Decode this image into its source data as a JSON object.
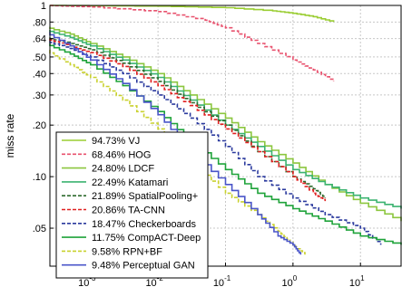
{
  "chart_data": {
    "type": "line",
    "title": "",
    "xlabel": "",
    "ylabel": "miss rate",
    "x_scale": "log",
    "y_scale": "log",
    "xlim": [
      0.00025,
      40
    ],
    "ylim": [
      0.03,
      1
    ],
    "x_ticks": [
      {
        "value": 0.001,
        "base": "10",
        "exp": "-3"
      },
      {
        "value": 0.01,
        "base": "10",
        "exp": "-2"
      },
      {
        "value": 0.1,
        "base": "10",
        "exp": "-1"
      },
      {
        "value": 1,
        "base": "10",
        "exp": "0"
      },
      {
        "value": 10,
        "base": "10",
        "exp": "1"
      }
    ],
    "y_ticks": [
      {
        "value": 1,
        "label": "1"
      },
      {
        "value": 0.8,
        "label": ".80"
      },
      {
        "value": 0.64,
        "label": ".64"
      },
      {
        "value": 0.5,
        "label": ".50"
      },
      {
        "value": 0.4,
        "label": ".40"
      },
      {
        "value": 0.3,
        "label": ".30"
      },
      {
        "value": 0.2,
        "label": ".20"
      },
      {
        "value": 0.1,
        "label": ".10"
      },
      {
        "value": 0.05,
        "label": ".05"
      }
    ],
    "grid": true,
    "legend_position": "bottom-left",
    "series": [
      {
        "name": "94.73% VJ",
        "color": "#9acd32",
        "dash": "solid",
        "points": [
          [
            0.0002,
            1.0
          ],
          [
            0.01,
            0.99
          ],
          [
            0.1,
            0.97
          ],
          [
            0.5,
            0.93
          ],
          [
            1,
            0.9
          ],
          [
            2,
            0.86
          ],
          [
            4,
            0.8
          ]
        ]
      },
      {
        "name": "68.46% HOG",
        "color": "#e8526e",
        "dash": "dashed",
        "points": [
          [
            0.0002,
            1.0
          ],
          [
            0.001,
            0.98
          ],
          [
            0.01,
            0.92
          ],
          [
            0.05,
            0.82
          ],
          [
            0.1,
            0.74
          ],
          [
            0.3,
            0.6
          ],
          [
            1,
            0.48
          ],
          [
            2,
            0.42
          ],
          [
            4,
            0.36
          ]
        ]
      },
      {
        "name": "24.80% LDCF",
        "color": "#8cc63f",
        "dash": "solid",
        "points": [
          [
            0.0002,
            0.75
          ],
          [
            0.0005,
            0.68
          ],
          [
            0.001,
            0.6
          ],
          [
            0.003,
            0.5
          ],
          [
            0.01,
            0.4
          ],
          [
            0.03,
            0.3
          ],
          [
            0.1,
            0.22
          ],
          [
            0.3,
            0.16
          ],
          [
            1,
            0.12
          ],
          [
            3,
            0.09
          ],
          [
            10,
            0.07
          ],
          [
            40,
            0.055
          ]
        ]
      },
      {
        "name": "22.49% Katamari",
        "color": "#3cb371",
        "dash": "solid",
        "points": [
          [
            0.0002,
            0.72
          ],
          [
            0.0005,
            0.65
          ],
          [
            0.001,
            0.58
          ],
          [
            0.003,
            0.48
          ],
          [
            0.01,
            0.38
          ],
          [
            0.03,
            0.28
          ],
          [
            0.1,
            0.2
          ],
          [
            0.3,
            0.15
          ],
          [
            1,
            0.11
          ],
          [
            3,
            0.09
          ],
          [
            10,
            0.075
          ],
          [
            40,
            0.065
          ]
        ]
      },
      {
        "name": "21.89% SpatialPooling+",
        "color": "#2e6b2e",
        "dash": "dashed",
        "points": [
          [
            0.0002,
            0.65
          ],
          [
            0.0005,
            0.6
          ],
          [
            0.001,
            0.55
          ],
          [
            0.003,
            0.46
          ],
          [
            0.01,
            0.36
          ],
          [
            0.03,
            0.27
          ],
          [
            0.1,
            0.2
          ],
          [
            0.3,
            0.14
          ],
          [
            1,
            0.1
          ],
          [
            2,
            0.085
          ],
          [
            3,
            0.075
          ]
        ]
      },
      {
        "name": "20.86% TA-CNN",
        "color": "#e02020",
        "dash": "dashed",
        "points": [
          [
            0.0002,
            0.64
          ],
          [
            0.0005,
            0.58
          ],
          [
            0.001,
            0.53
          ],
          [
            0.003,
            0.44
          ],
          [
            0.01,
            0.34
          ],
          [
            0.03,
            0.26
          ],
          [
            0.1,
            0.19
          ],
          [
            0.3,
            0.14
          ],
          [
            1,
            0.1
          ],
          [
            2,
            0.08
          ],
          [
            3,
            0.072
          ]
        ]
      },
      {
        "name": "18.47% Checkerboards",
        "color": "#2b3a9e",
        "dash": "dashed",
        "points": [
          [
            0.0002,
            0.62
          ],
          [
            0.0005,
            0.56
          ],
          [
            0.001,
            0.5
          ],
          [
            0.003,
            0.4
          ],
          [
            0.01,
            0.3
          ],
          [
            0.03,
            0.22
          ],
          [
            0.1,
            0.15
          ],
          [
            0.3,
            0.1
          ],
          [
            1,
            0.075
          ],
          [
            3,
            0.06
          ],
          [
            10,
            0.05
          ],
          [
            20,
            0.04
          ]
        ]
      },
      {
        "name": "11.75% CompACT-Deep",
        "color": "#1fa33a",
        "dash": "solid",
        "points": [
          [
            0.0002,
            0.6
          ],
          [
            0.0005,
            0.52
          ],
          [
            0.001,
            0.45
          ],
          [
            0.003,
            0.34
          ],
          [
            0.01,
            0.24
          ],
          [
            0.03,
            0.16
          ],
          [
            0.1,
            0.11
          ],
          [
            0.3,
            0.08
          ],
          [
            1,
            0.065
          ],
          [
            3,
            0.055
          ],
          [
            10,
            0.045
          ],
          [
            40,
            0.04
          ]
        ]
      },
      {
        "name": "9.58% RPN+BF",
        "color": "#c9d12e",
        "dash": "dashed",
        "points": [
          [
            0.0002,
            0.55
          ],
          [
            0.0005,
            0.45
          ],
          [
            0.001,
            0.38
          ],
          [
            0.003,
            0.28
          ],
          [
            0.01,
            0.19
          ],
          [
            0.03,
            0.12
          ],
          [
            0.1,
            0.08
          ],
          [
            0.3,
            0.06
          ],
          [
            0.6,
            0.048
          ],
          [
            1,
            0.04
          ],
          [
            1.5,
            0.035
          ]
        ]
      },
      {
        "name": "9.48% Perceptual GAN",
        "color": "#4a55c9",
        "dash": "solid",
        "points": [
          [
            0.0002,
            0.7
          ],
          [
            0.0005,
            0.58
          ],
          [
            0.001,
            0.48
          ],
          [
            0.003,
            0.35
          ],
          [
            0.01,
            0.23
          ],
          [
            0.03,
            0.14
          ],
          [
            0.1,
            0.09
          ],
          [
            0.3,
            0.06
          ],
          [
            0.6,
            0.045
          ],
          [
            1,
            0.04
          ],
          [
            1.3,
            0.035
          ]
        ]
      }
    ]
  }
}
